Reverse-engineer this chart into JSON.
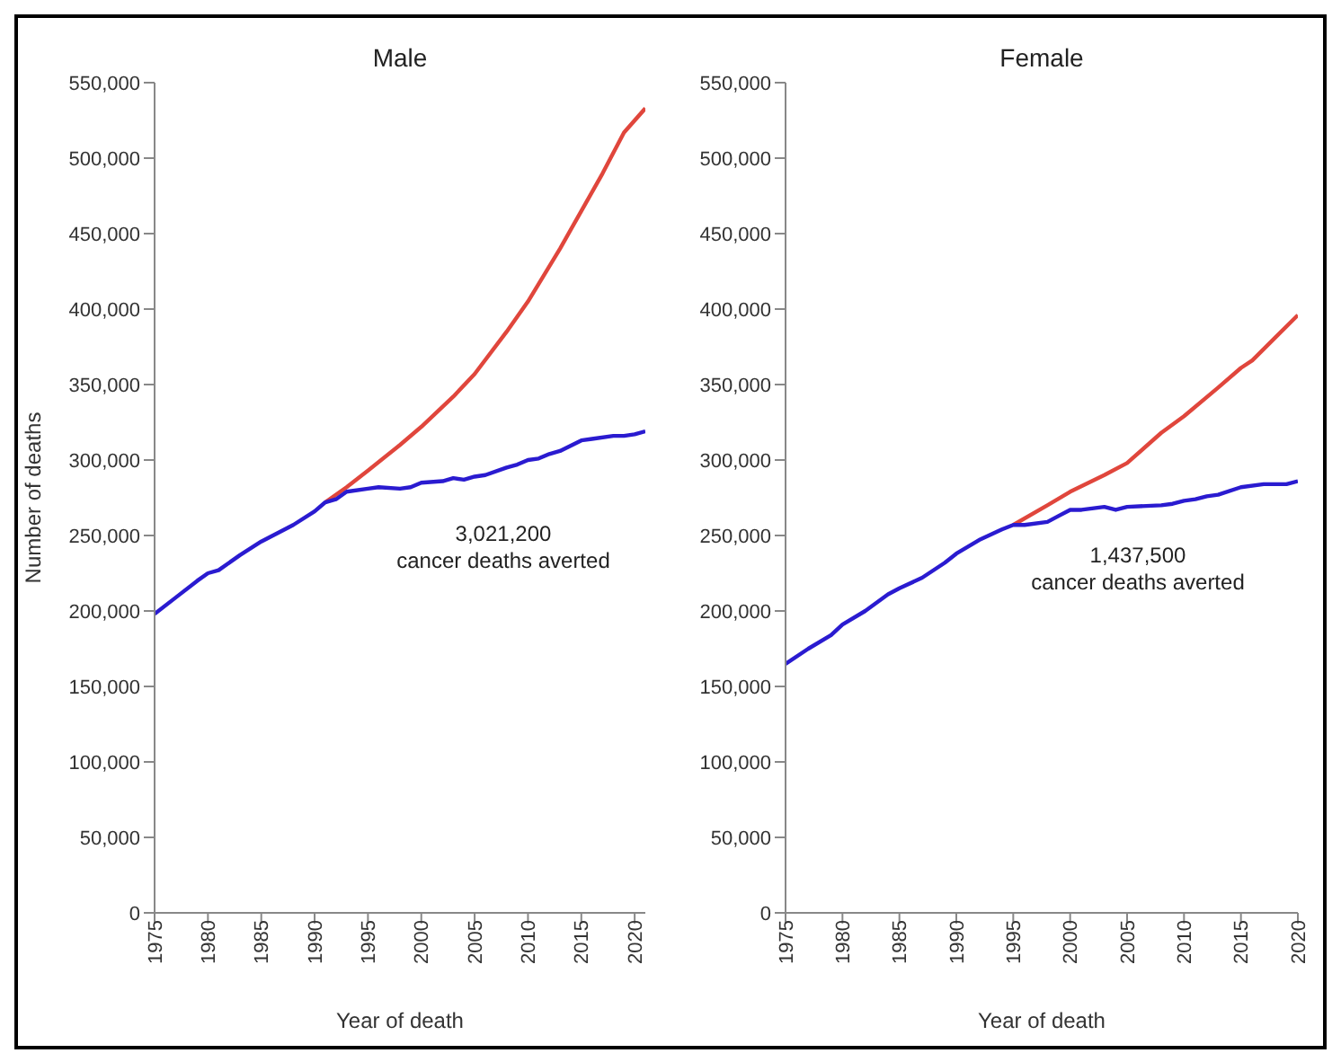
{
  "chart_data": [
    {
      "type": "line",
      "title": "Male",
      "xlabel": "Year of death",
      "ylabel": "Number of deaths",
      "xlim": [
        1975,
        2021
      ],
      "xticks": [
        1975,
        1980,
        1985,
        1990,
        1995,
        2000,
        2005,
        2010,
        2015,
        2020
      ],
      "ylim": [
        0,
        550000
      ],
      "yticks": [
        {
          "value": 0,
          "label": "0"
        },
        {
          "value": 50000,
          "label": "50,000"
        },
        {
          "value": 100000,
          "label": "100,000"
        },
        {
          "value": 150000,
          "label": "150,000"
        },
        {
          "value": 200000,
          "label": "200,000"
        },
        {
          "value": 250000,
          "label": "250,000"
        },
        {
          "value": 300000,
          "label": "300,000"
        },
        {
          "value": 350000,
          "label": "350,000"
        },
        {
          "value": 400000,
          "label": "400,000"
        },
        {
          "value": 450000,
          "label": "450,000"
        },
        {
          "value": 500000,
          "label": "500,000"
        },
        {
          "value": 550000,
          "label": "550,000"
        }
      ],
      "grid": false,
      "legend": false,
      "marker": "none",
      "line_style": "solid",
      "annotations": [
        "3,021,200\ncancer deaths averted"
      ],
      "series": [
        {
          "color": "#e0463c",
          "x": [
            1991,
            1993,
            1995,
            1998,
            2000,
            2003,
            2005,
            2008,
            2010,
            2013,
            2015,
            2017,
            2019,
            2021
          ],
          "values": [
            272000,
            282000,
            293000,
            310000,
            322000,
            342000,
            357000,
            385000,
            405000,
            440000,
            465000,
            490000,
            517000,
            533000
          ]
        },
        {
          "color": "#2a1bd0",
          "x": [
            1975,
            1977,
            1979,
            1980,
            1981,
            1983,
            1985,
            1988,
            1990,
            1991,
            1992,
            1993,
            1995,
            1996,
            1998,
            1999,
            2000,
            2002,
            2003,
            2004,
            2005,
            2006,
            2008,
            2009,
            2010,
            2011,
            2012,
            2013,
            2015,
            2016,
            2018,
            2019,
            2020,
            2021
          ],
          "values": [
            198000,
            209000,
            220000,
            225000,
            227000,
            237000,
            246000,
            257000,
            266000,
            272000,
            274000,
            279000,
            281000,
            282000,
            281000,
            282000,
            285000,
            286000,
            288000,
            287000,
            289000,
            290000,
            295000,
            297000,
            300000,
            301000,
            304000,
            306000,
            313000,
            314000,
            316000,
            316000,
            317000,
            319000
          ]
        }
      ]
    },
    {
      "type": "line",
      "title": "Female",
      "xlabel": "Year of death",
      "xlim": [
        1975,
        2020
      ],
      "xticks": [
        1975,
        1980,
        1985,
        1990,
        1995,
        2000,
        2005,
        2010,
        2015,
        2020
      ],
      "ylim": [
        0,
        550000
      ],
      "yticks": [
        {
          "value": 0,
          "label": "0"
        },
        {
          "value": 50000,
          "label": "50,000"
        },
        {
          "value": 100000,
          "label": "100,000"
        },
        {
          "value": 150000,
          "label": "150,000"
        },
        {
          "value": 200000,
          "label": "200,000"
        },
        {
          "value": 250000,
          "label": "250,000"
        },
        {
          "value": 300000,
          "label": "300,000"
        },
        {
          "value": 350000,
          "label": "350,000"
        },
        {
          "value": 400000,
          "label": "400,000"
        },
        {
          "value": 450000,
          "label": "450,000"
        },
        {
          "value": 500000,
          "label": "500,000"
        },
        {
          "value": 550000,
          "label": "550,000"
        }
      ],
      "grid": false,
      "legend": false,
      "marker": "none",
      "line_style": "solid",
      "annotations": [
        "1,437,500\ncancer deaths averted"
      ],
      "series": [
        {
          "color": "#e0463c",
          "x": [
            1995,
            1998,
            2000,
            2003,
            2005,
            2008,
            2010,
            2013,
            2015,
            2016,
            2018,
            2020
          ],
          "values": [
            257000,
            270000,
            279000,
            290000,
            298000,
            318000,
            329000,
            348000,
            361000,
            366000,
            381000,
            396000
          ]
        },
        {
          "color": "#2a1bd0",
          "x": [
            1975,
            1977,
            1979,
            1980,
            1982,
            1984,
            1985,
            1987,
            1989,
            1990,
            1992,
            1994,
            1995,
            1996,
            1998,
            1999,
            2000,
            2001,
            2003,
            2004,
            2005,
            2008,
            2009,
            2010,
            2011,
            2012,
            2013,
            2015,
            2017,
            2019,
            2020
          ],
          "values": [
            165000,
            175000,
            184000,
            191000,
            200000,
            211000,
            215000,
            222000,
            232000,
            238000,
            247000,
            254000,
            257000,
            257000,
            259000,
            263000,
            267000,
            267000,
            269000,
            267000,
            269000,
            270000,
            271000,
            273000,
            274000,
            276000,
            277000,
            282000,
            284000,
            284000,
            286000
          ]
        }
      ]
    }
  ]
}
